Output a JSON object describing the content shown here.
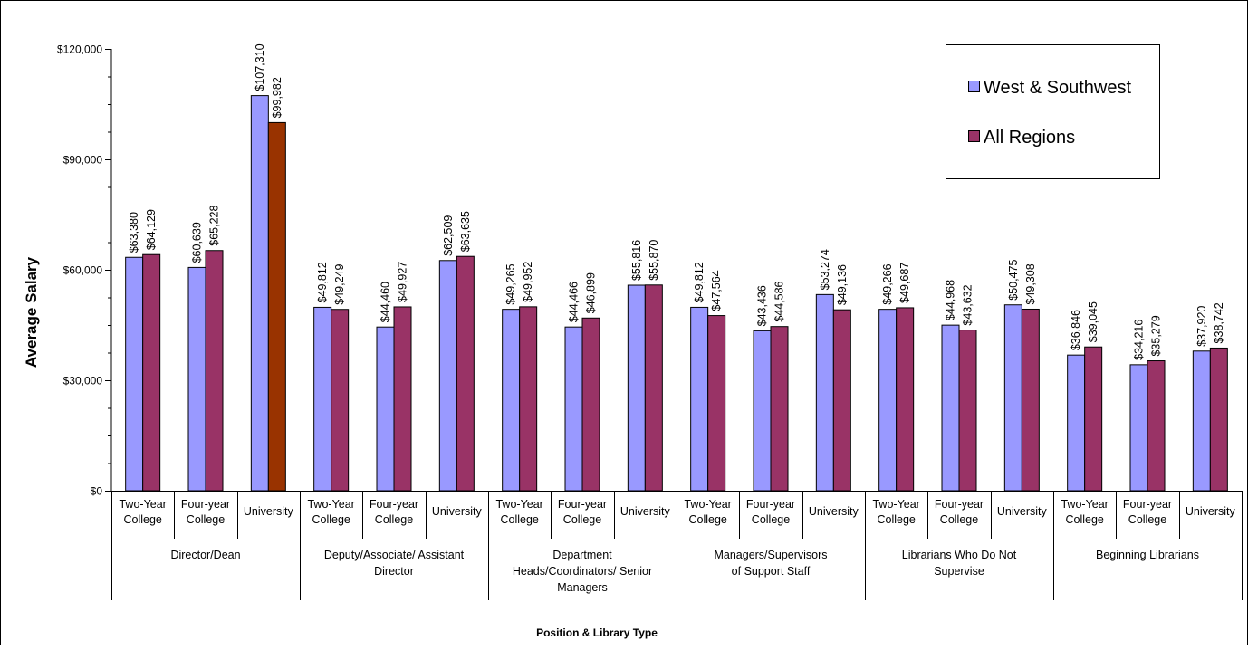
{
  "chart_data": {
    "type": "bar",
    "title": "",
    "ylabel": "Average Salary",
    "xlabel": "Position & Library Type",
    "ylim": [
      0,
      120000
    ],
    "yticks": [
      0,
      30000,
      60000,
      90000,
      120000
    ],
    "ytick_labels": [
      "$0",
      "$30,000",
      "$60,000",
      "$90,000",
      "$120,000"
    ],
    "grid": false,
    "legend_position": "top-right",
    "groups": [
      {
        "label_lines": [
          "Director/Dean"
        ],
        "size": 3
      },
      {
        "label_lines": [
          "Deputy/Associate/ Assistant",
          "Director"
        ],
        "size": 3
      },
      {
        "label_lines": [
          "Department",
          "Heads/Coordinators/ Senior",
          "Managers"
        ],
        "size": 3
      },
      {
        "label_lines": [
          "Managers/Supervisors",
          "of Support Staff"
        ],
        "size": 3
      },
      {
        "label_lines": [
          "Librarians  Who Do Not",
          "Supervise"
        ],
        "size": 3
      },
      {
        "label_lines": [
          "Beginning Librarians"
        ],
        "size": 3
      }
    ],
    "categories": [
      [
        "Two-Year",
        "College"
      ],
      [
        "Four-year",
        "College"
      ],
      [
        "University"
      ],
      [
        "Two-Year",
        "College"
      ],
      [
        "Four-year",
        "College"
      ],
      [
        "University"
      ],
      [
        "Two-Year",
        "College"
      ],
      [
        "Four-year",
        "College"
      ],
      [
        "University"
      ],
      [
        "Two-Year",
        "College"
      ],
      [
        "Four-year",
        "College"
      ],
      [
        "University"
      ],
      [
        "Two-Year",
        "College"
      ],
      [
        "Four-year",
        "College"
      ],
      [
        "University"
      ],
      [
        "Two-Year",
        "College"
      ],
      [
        "Four-year",
        "College"
      ],
      [
        "University"
      ]
    ],
    "series": [
      {
        "name": "West & Southwest",
        "color": "#9999ff",
        "values": [
          63380,
          60639,
          107310,
          49812,
          44460,
          62509,
          49265,
          44466,
          55816,
          49812,
          43436,
          53274,
          49266,
          44968,
          50475,
          36846,
          34216,
          37920
        ],
        "labels": [
          "$63,380",
          "$60,639",
          "$107,310",
          "$49,812",
          "$44,460",
          "$62,509",
          "$49,265",
          "$44,466",
          "$55,816",
          "$49,812",
          "$43,436",
          "$53,274",
          "$49,266",
          "$44,968",
          "$50,475",
          "$36,846",
          "$34,216",
          "$37,920"
        ]
      },
      {
        "name": "All Regions",
        "color": "#993366",
        "highlight_color": "#993300",
        "highlight_index": 2,
        "values": [
          64129,
          65228,
          99982,
          49249,
          49927,
          63635,
          49952,
          46899,
          55870,
          47564,
          44586,
          49136,
          49687,
          43632,
          49308,
          39045,
          35279,
          38742
        ],
        "labels": [
          "$64,129",
          "$65,228",
          "$99,982",
          "$49,249",
          "$49,927",
          "$63,635",
          "$49,952",
          "$46,899",
          "$55,870",
          "$47,564",
          "$44,586",
          "$49,136",
          "$49,687",
          "$43,632",
          "$49,308",
          "$39,045",
          "$35,279",
          "$38,742"
        ]
      }
    ]
  }
}
